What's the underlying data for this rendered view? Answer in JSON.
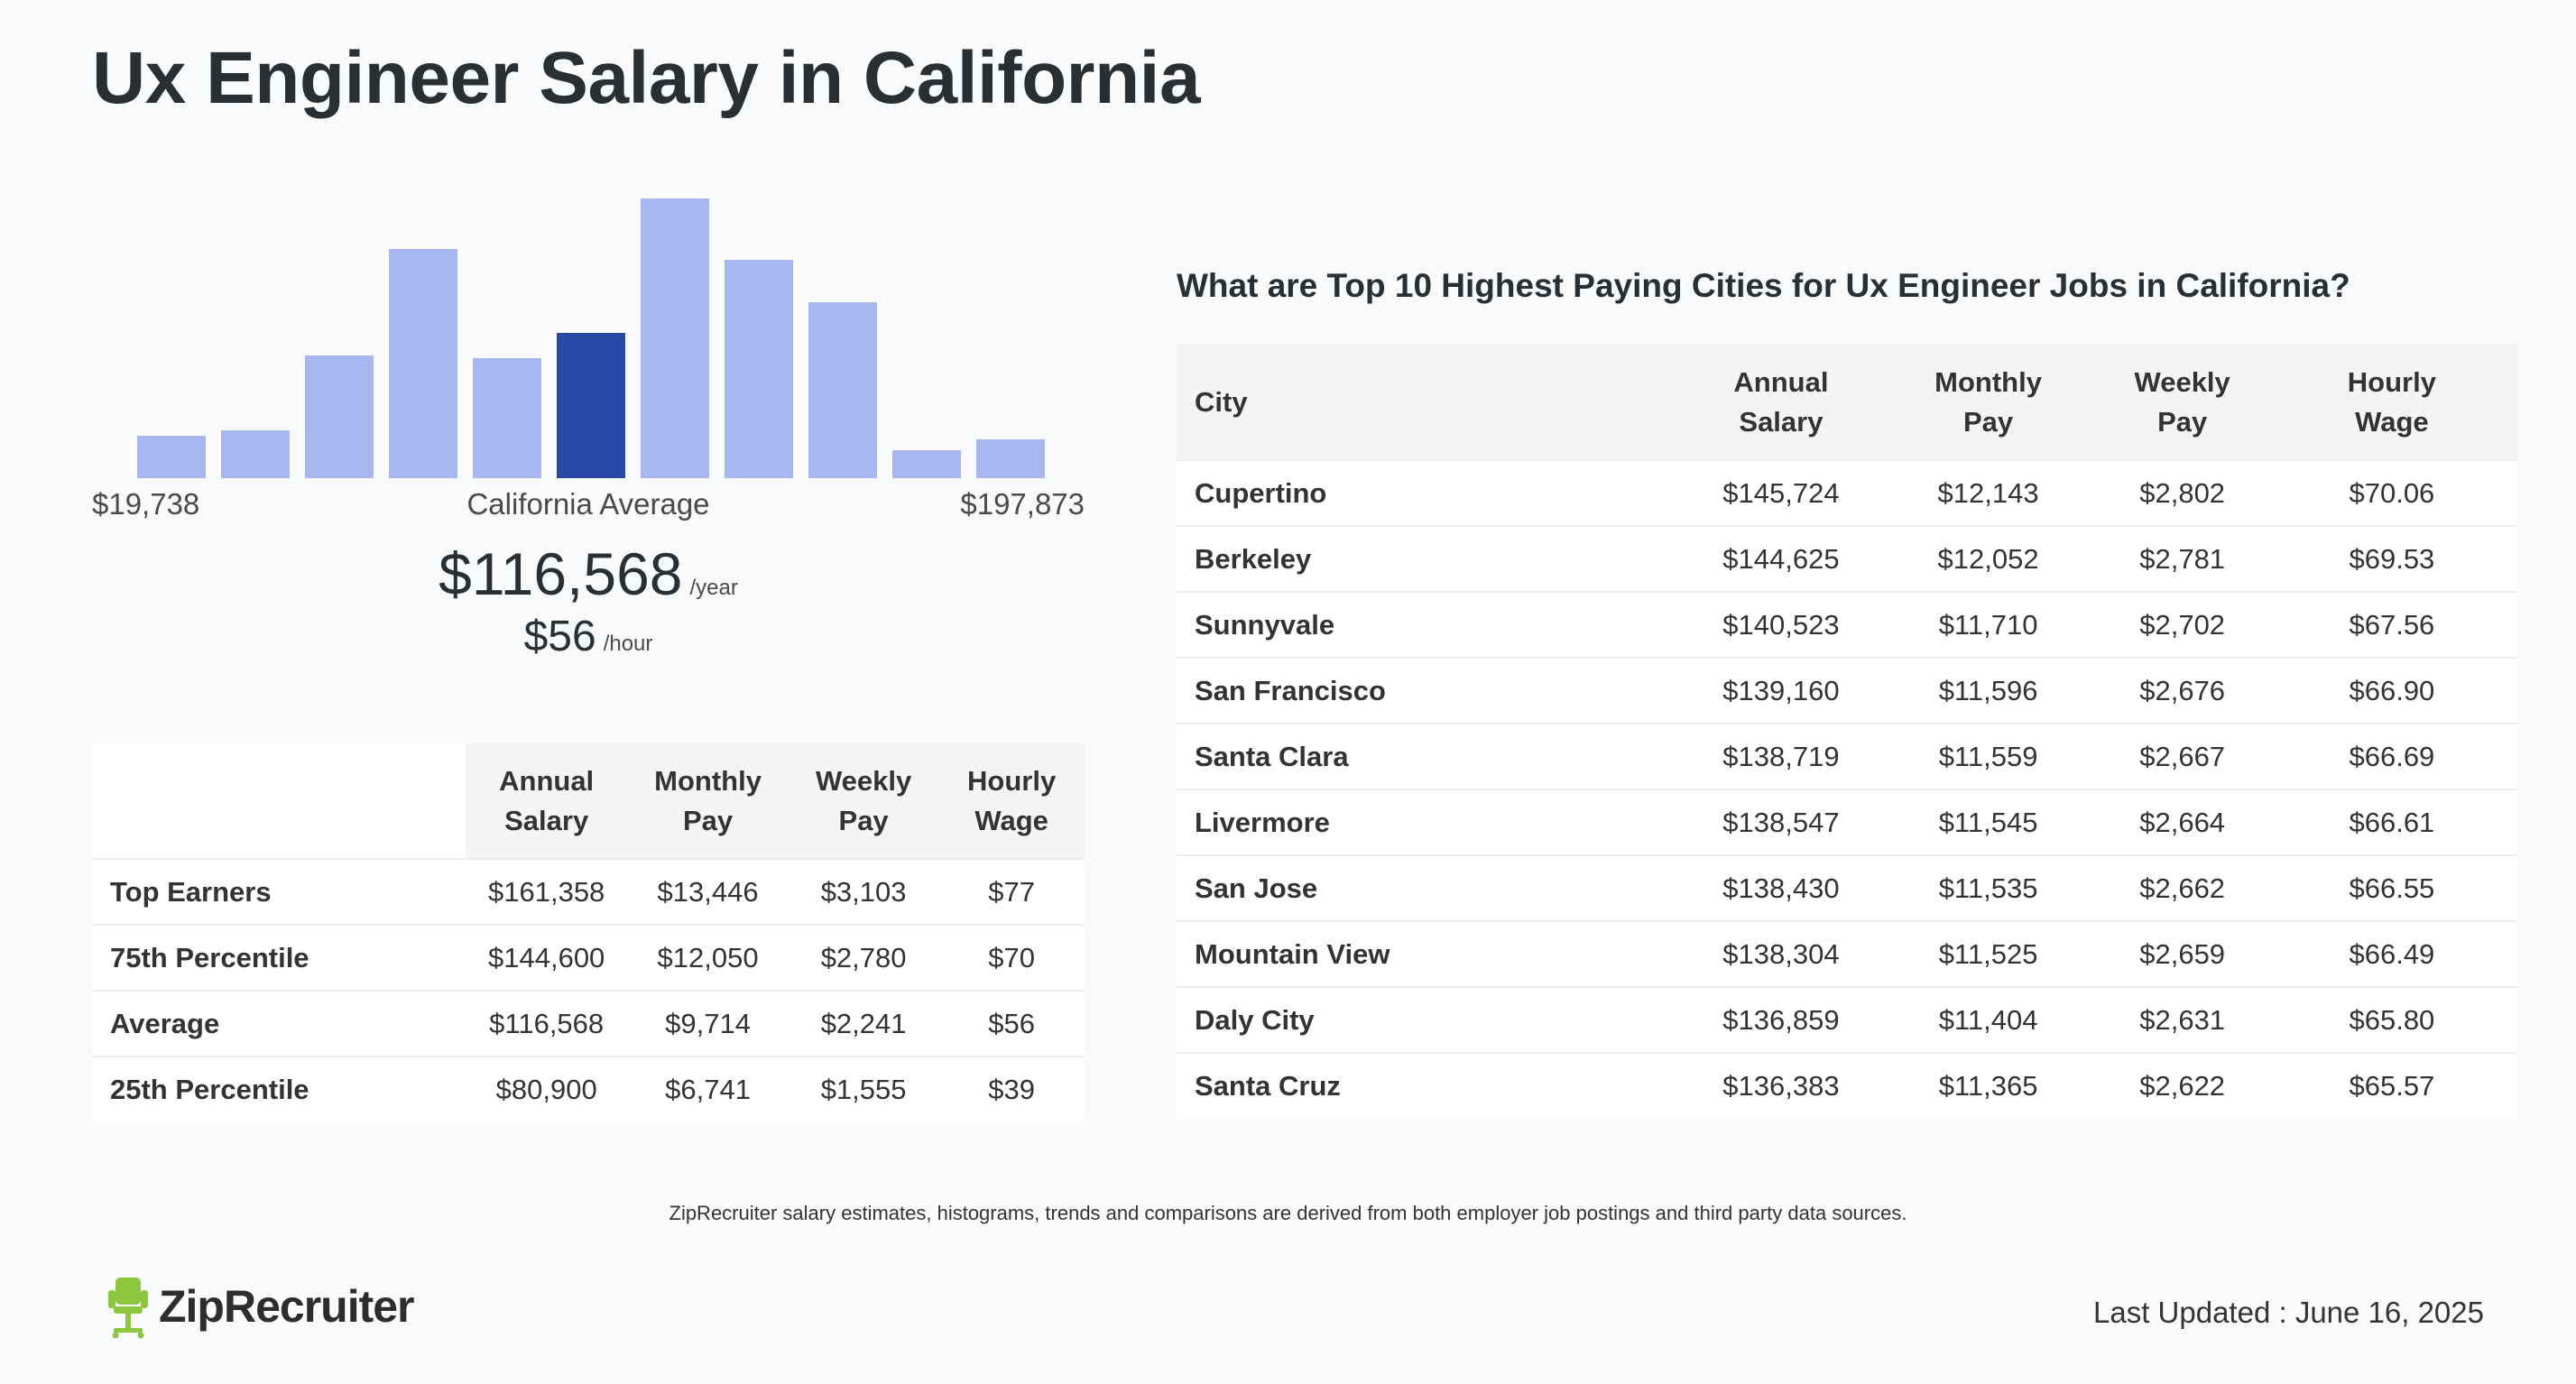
{
  "page": {
    "title": "Ux Engineer Salary in California"
  },
  "histogram": {
    "min_label": "$19,738",
    "mid_label": "California Average",
    "max_label": "$197,873",
    "relative_counts": [
      0.15,
      0.17,
      0.44,
      0.82,
      0.43,
      0.52,
      1.0,
      0.78,
      0.63,
      0.1,
      0.14
    ],
    "highlight_index": 5,
    "colors": {
      "bar": "#a8b7ef",
      "highlight": "#2a48a6"
    }
  },
  "average": {
    "annual": "$116,568",
    "annual_unit": "/year",
    "hourly": "$56",
    "hourly_unit": "/hour"
  },
  "percentile_table": {
    "headers": [
      "Annual Salary",
      "Monthly Pay",
      "Weekly Pay",
      "Hourly Wage"
    ],
    "rows": [
      {
        "label": "Top Earners",
        "values": [
          "$161,358",
          "$13,446",
          "$3,103",
          "$77"
        ]
      },
      {
        "label": "75th Percentile",
        "values": [
          "$144,600",
          "$12,050",
          "$2,780",
          "$70"
        ]
      },
      {
        "label": "Average",
        "values": [
          "$116,568",
          "$9,714",
          "$2,241",
          "$56"
        ]
      },
      {
        "label": "25th Percentile",
        "values": [
          "$80,900",
          "$6,741",
          "$1,555",
          "$39"
        ]
      }
    ]
  },
  "cities": {
    "heading": "What are Top 10 Highest Paying Cities for Ux Engineer Jobs in California?",
    "headers": [
      "City",
      "Annual Salary",
      "Monthly Pay",
      "Weekly Pay",
      "Hourly Wage"
    ],
    "rows": [
      {
        "city": "Cupertino",
        "values": [
          "$145,724",
          "$12,143",
          "$2,802",
          "$70.06"
        ]
      },
      {
        "city": "Berkeley",
        "values": [
          "$144,625",
          "$12,052",
          "$2,781",
          "$69.53"
        ]
      },
      {
        "city": "Sunnyvale",
        "values": [
          "$140,523",
          "$11,710",
          "$2,702",
          "$67.56"
        ]
      },
      {
        "city": "San Francisco",
        "values": [
          "$139,160",
          "$11,596",
          "$2,676",
          "$66.90"
        ]
      },
      {
        "city": "Santa Clara",
        "values": [
          "$138,719",
          "$11,559",
          "$2,667",
          "$66.69"
        ]
      },
      {
        "city": "Livermore",
        "values": [
          "$138,547",
          "$11,545",
          "$2,664",
          "$66.61"
        ]
      },
      {
        "city": "San Jose",
        "values": [
          "$138,430",
          "$11,535",
          "$2,662",
          "$66.55"
        ]
      },
      {
        "city": "Mountain View",
        "values": [
          "$138,304",
          "$11,525",
          "$2,659",
          "$66.49"
        ]
      },
      {
        "city": "Daly City",
        "values": [
          "$136,859",
          "$11,404",
          "$2,631",
          "$65.80"
        ]
      },
      {
        "city": "Santa Cruz",
        "values": [
          "$136,383",
          "$11,365",
          "$2,622",
          "$65.57"
        ]
      }
    ]
  },
  "footer": {
    "disclaimer": "ZipRecruiter salary estimates, histograms, trends and comparisons are derived from both employer job postings and third party data sources.",
    "logo_text": "ZipRecruiter",
    "last_updated": "Last Updated : June 16, 2025",
    "brand_color": "#8dc63f"
  }
}
